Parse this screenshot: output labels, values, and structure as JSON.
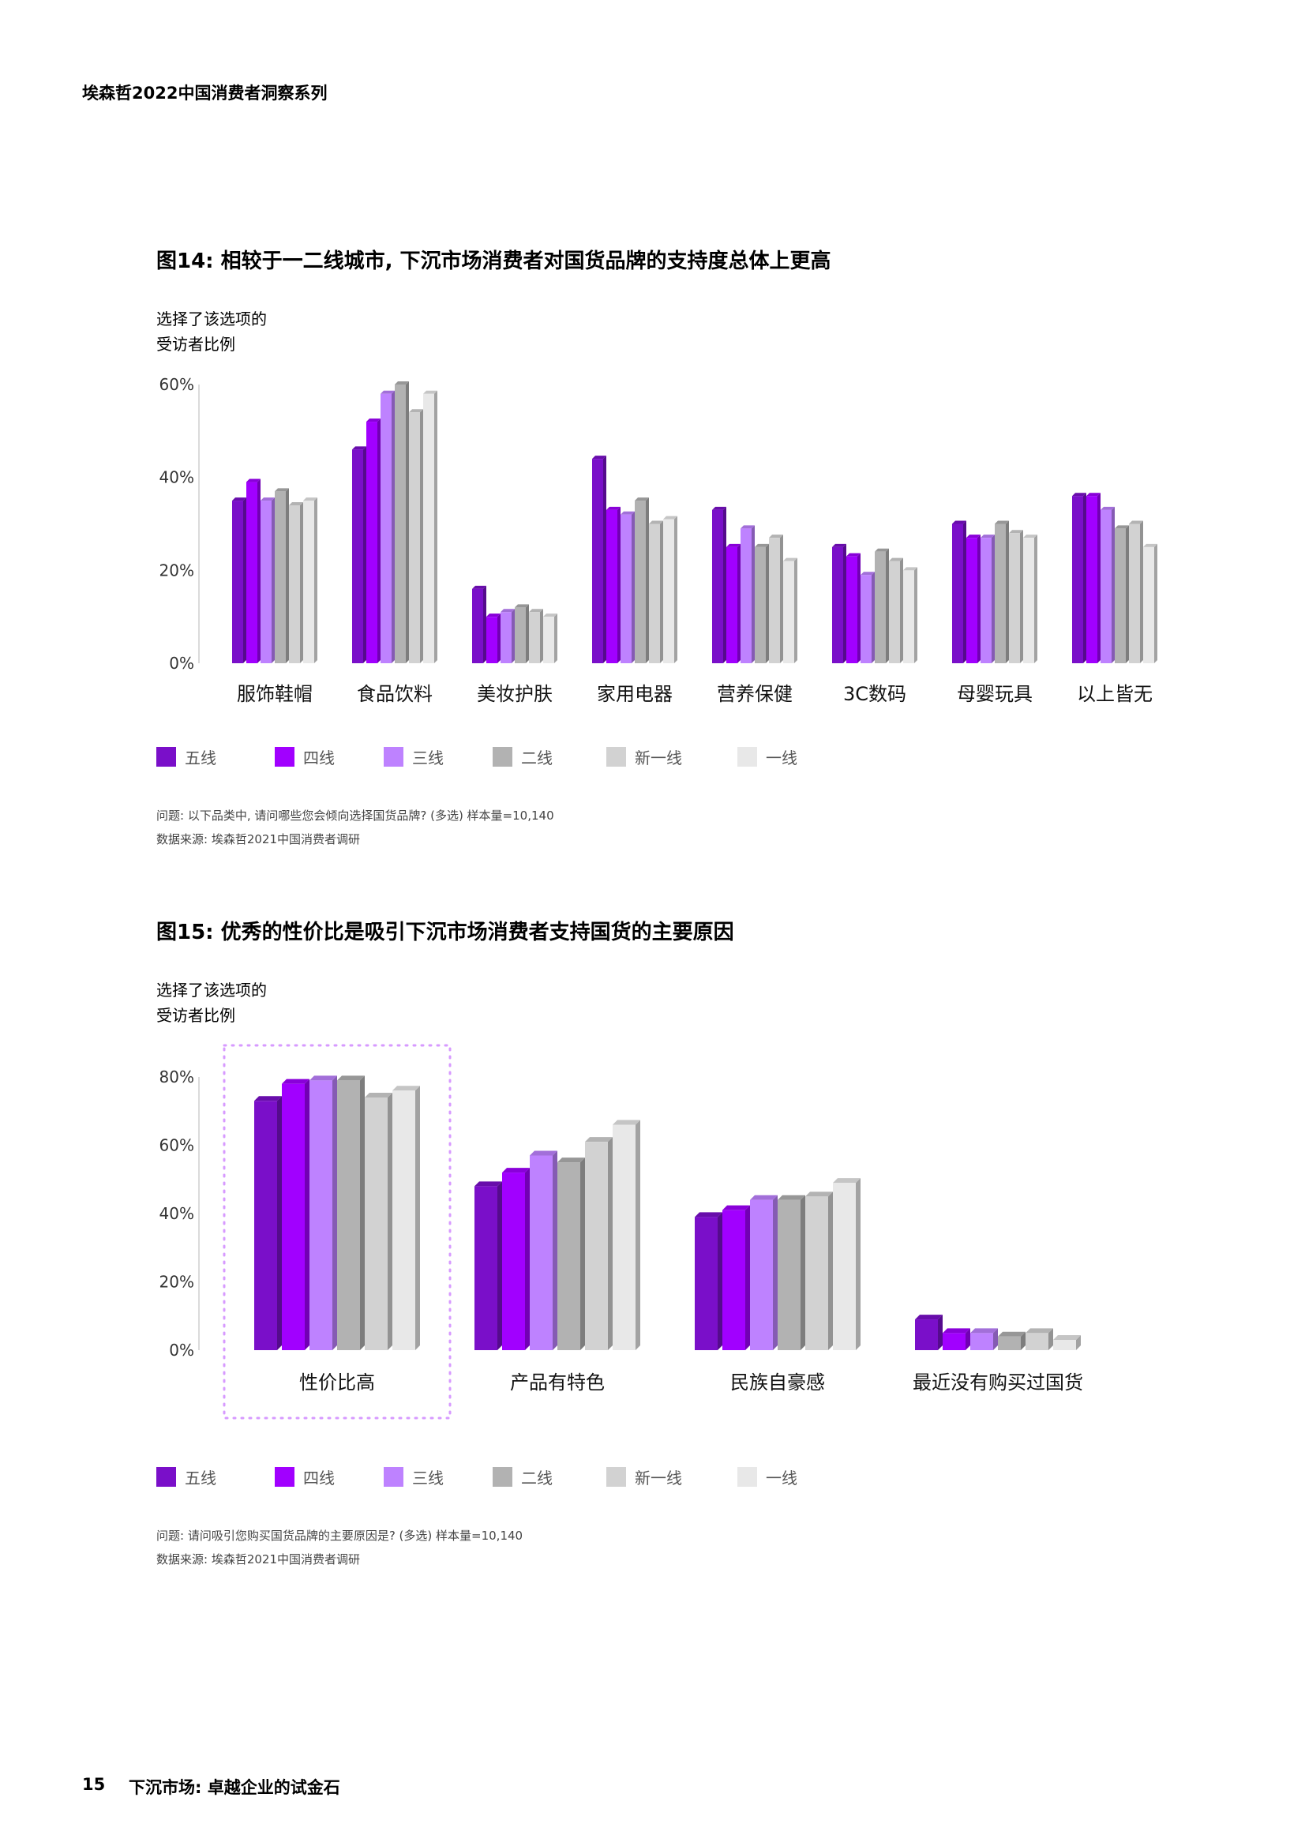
{
  "header": {
    "title": "埃森哲2022中国消费者洞察系列"
  },
  "colors": {
    "五线": "#7a0fc9",
    "四线": "#a100ff",
    "三线": "#be82ff",
    "二线": "#b2b2b2",
    "新一线": "#d2d2d2",
    "一线": "#e8e8e8"
  },
  "figures": [
    {
      "title": "图14: 相较于一二线城市, 下沉市场消费者对国货品牌的支持度总体上更高",
      "ylabel_line1": "选择了该选项的",
      "ylabel_line2": "受访者比例",
      "legend": [
        "五线",
        "四线",
        "三线",
        "二线",
        "新一线",
        "一线"
      ],
      "question": "问题: 以下品类中, 请问哪些您会倾向选择国货品牌? (多选) 样本量=10,140",
      "source": "数据来源: 埃森哲2021中国消费者调研"
    },
    {
      "title": "图15: 优秀的性价比是吸引下沉市场消费者支持国货的主要原因",
      "ylabel_line1": "选择了该选项的",
      "ylabel_line2": "受访者比例",
      "legend": [
        "五线",
        "四线",
        "三线",
        "二线",
        "新一线",
        "一线"
      ],
      "question": "问题: 请问吸引您购买国货品牌的主要原因是? (多选) 样本量=10,140",
      "source": "数据来源: 埃森哲2021中国消费者调研"
    }
  ],
  "chart_data": [
    {
      "type": "bar",
      "title": "图14: 相较于一二线城市, 下沉市场消费者对国货品牌的支持度总体上更高",
      "ylabel": "选择了该选项的受访者比例",
      "ylim": [
        0,
        60
      ],
      "yticks": [
        "0%",
        "20%",
        "40%",
        "60%"
      ],
      "categories": [
        "服饰鞋帽",
        "食品饮料",
        "美妆护肤",
        "家用电器",
        "营养保健",
        "3C数码",
        "母婴玩具",
        "以上皆无"
      ],
      "series": [
        {
          "name": "五线",
          "values": [
            35,
            46,
            16,
            44,
            33,
            25,
            30,
            36
          ]
        },
        {
          "name": "四线",
          "values": [
            39,
            52,
            10,
            33,
            25,
            23,
            27,
            36
          ]
        },
        {
          "name": "三线",
          "values": [
            35,
            58,
            11,
            32,
            29,
            19,
            27,
            33
          ]
        },
        {
          "name": "二线",
          "values": [
            37,
            60,
            12,
            35,
            25,
            24,
            30,
            29
          ]
        },
        {
          "name": "新一线",
          "values": [
            34,
            54,
            11,
            30,
            27,
            22,
            28,
            30
          ]
        },
        {
          "name": "一线",
          "values": [
            35,
            58,
            10,
            31,
            22,
            20,
            27,
            25
          ]
        }
      ],
      "legend_position": "bottom",
      "grid": false
    },
    {
      "type": "bar",
      "title": "图15: 优秀的性价比是吸引下沉市场消费者支持国货的主要原因",
      "ylabel": "选择了该选项的受访者比例",
      "ylim": [
        0,
        80
      ],
      "yticks": [
        "0%",
        "20%",
        "40%",
        "60%",
        "80%"
      ],
      "categories": [
        "性价比高",
        "产品有特色",
        "民族自豪感",
        "最近没有购买过国货"
      ],
      "highlight_category": "性价比高",
      "series": [
        {
          "name": "五线",
          "values": [
            73,
            48,
            39,
            9
          ]
        },
        {
          "name": "四线",
          "values": [
            78,
            52,
            41,
            5
          ]
        },
        {
          "name": "三线",
          "values": [
            79,
            57,
            44,
            5
          ]
        },
        {
          "name": "二线",
          "values": [
            79,
            55,
            44,
            4
          ]
        },
        {
          "name": "新一线",
          "values": [
            74,
            61,
            45,
            5
          ]
        },
        {
          "name": "一线",
          "values": [
            76,
            66,
            49,
            3
          ]
        }
      ],
      "legend_position": "bottom",
      "grid": false
    }
  ],
  "footer": {
    "page_number": "15",
    "title": "下沉市场: 卓越企业的试金石"
  }
}
